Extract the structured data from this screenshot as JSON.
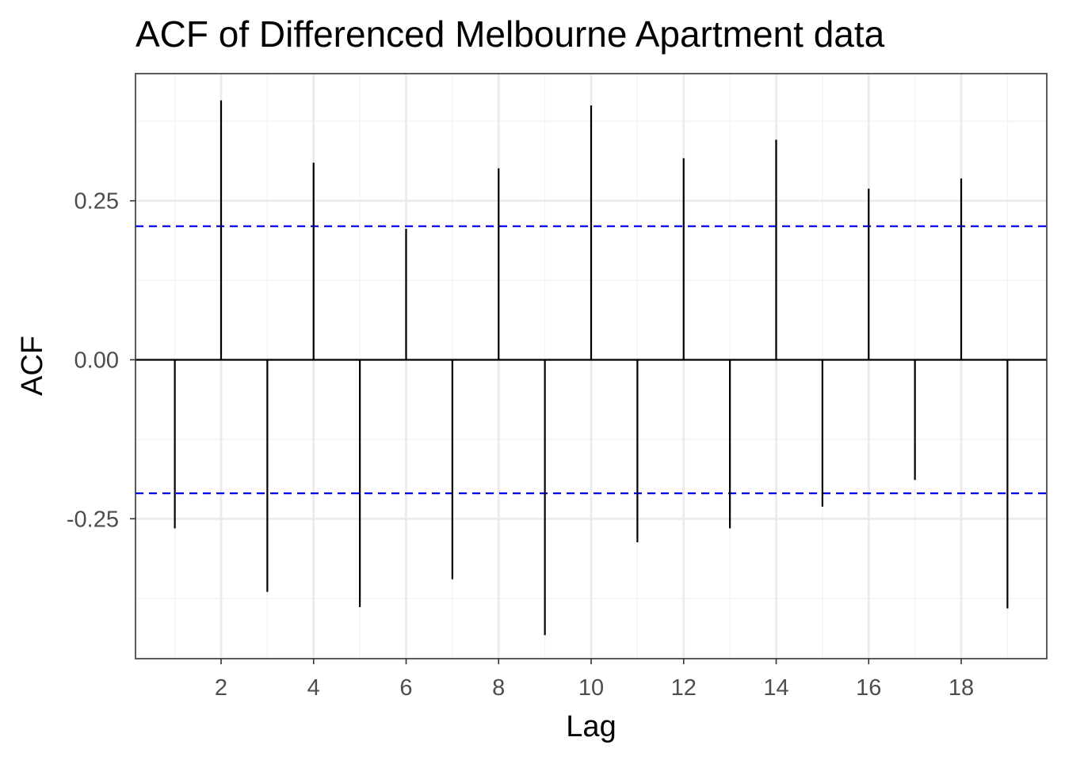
{
  "chart_data": {
    "type": "bar",
    "title": "ACF of Differenced Melbourne Apartment data",
    "xlabel": "Lag",
    "ylabel": "ACF",
    "x": [
      1,
      2,
      3,
      4,
      5,
      6,
      7,
      8,
      9,
      10,
      11,
      12,
      13,
      14,
      15,
      16,
      17,
      18,
      19
    ],
    "values": [
      -0.265,
      0.408,
      -0.365,
      0.31,
      -0.389,
      0.206,
      -0.345,
      0.301,
      -0.433,
      0.4,
      -0.287,
      0.317,
      -0.265,
      0.346,
      -0.231,
      0.269,
      -0.189,
      0.285,
      -0.391
    ],
    "confidence_bound": 0.21,
    "xlim": [
      0.15,
      19.85
    ],
    "ylim": [
      -0.47,
      0.45
    ],
    "x_ticks": [
      2,
      4,
      6,
      8,
      10,
      12,
      14,
      16,
      18
    ],
    "x_tick_labels": [
      "2",
      "4",
      "6",
      "8",
      "10",
      "12",
      "14",
      "16",
      "18"
    ],
    "y_ticks": [
      -0.25,
      0,
      0.25
    ],
    "y_tick_labels": [
      "-0.25",
      "0.00",
      "0.25"
    ],
    "grid": true,
    "colors": {
      "bars": "#000000",
      "confidence": "#0000ff",
      "panel_border": "#333333",
      "grid_major": "#ebebeb",
      "grid_minor": "#f3f3f3",
      "tick_text": "#4d4d4d"
    }
  }
}
